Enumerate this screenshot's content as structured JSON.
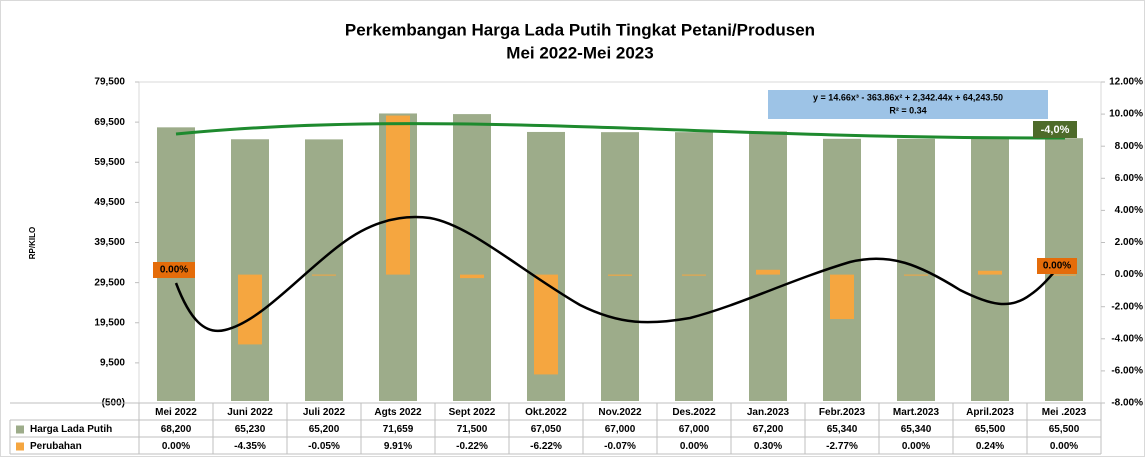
{
  "chart_data": {
    "type": "bar",
    "title": "Perkembangan Harga  Lada Putih  Tingkat Petani/Produsen",
    "subtitle": "Mei 2022-Mei 2023",
    "y_label": "RP/KILO",
    "categories": [
      "Mei 2022",
      "Juni 2022",
      "Juli 2022",
      "Agts 2022",
      "Sept 2022",
      "Okt.2022",
      "Nov.2022",
      "Des.2022",
      "Jan.2023",
      "Febr.2023",
      "Mart.2023",
      "April.2023",
      "Mei .2023"
    ],
    "series": [
      {
        "name": "Harga Lada Putih",
        "color": "#9dac8a",
        "values": [
          68200,
          65230,
          65200,
          71659,
          71500,
          67050,
          67000,
          67000,
          67200,
          65340,
          65340,
          65500,
          65500
        ],
        "value_labels": [
          "68,200",
          "65,230",
          "65,200",
          "71,659",
          "71,500",
          "67,050",
          "67,000",
          "67,000",
          "67,200",
          "65,340",
          "65,340",
          "65,500",
          "65,500"
        ]
      },
      {
        "name": "Perubahan",
        "color": "#f5a640",
        "axis": "y2",
        "values": [
          0,
          -4.35,
          -0.05,
          9.91,
          -0.22,
          -6.22,
          -0.07,
          0,
          0.3,
          -2.77,
          0,
          0.24,
          0
        ],
        "value_labels": [
          "0.00%",
          "-4.35%",
          "-0.05%",
          "9.91%",
          "-0.22%",
          "-6.22%",
          "-0.07%",
          "0.00%",
          "0.30%",
          "-2.77%",
          "0.00%",
          "0.24%",
          "0.00%"
        ]
      }
    ],
    "ylim": [
      -500,
      79500
    ],
    "yticks": [
      {
        "value": -500,
        "label": "(500)"
      },
      {
        "value": 9500,
        "label": "9,500"
      },
      {
        "value": 19500,
        "label": "19,500"
      },
      {
        "value": 29500,
        "label": "29,500"
      },
      {
        "value": 39500,
        "label": "39,500"
      },
      {
        "value": 49500,
        "label": "49,500"
      },
      {
        "value": 59500,
        "label": "59,500"
      },
      {
        "value": 69500,
        "label": "69,500"
      },
      {
        "value": 79500,
        "label": "79,500"
      }
    ],
    "y2lim": [
      -8,
      12
    ],
    "y2ticks": [
      {
        "value": -8,
        "label": "-8.00%"
      },
      {
        "value": -6,
        "label": "-6.00%"
      },
      {
        "value": -4,
        "label": "-4.00%"
      },
      {
        "value": -2,
        "label": "-2.00%"
      },
      {
        "value": 0,
        "label": "0.00%"
      },
      {
        "value": 2,
        "label": "2.00%"
      },
      {
        "value": 4,
        "label": "4.00%"
      },
      {
        "value": 6,
        "label": "6.00%"
      },
      {
        "value": 8,
        "label": "8.00%"
      },
      {
        "value": 10,
        "label": "10.00%"
      },
      {
        "value": 12,
        "label": "12.00%"
      }
    ],
    "trend_equation": "y = 14.66x³ - 363.86x² + 2,342.44x + 64,243.50",
    "trend_r2": "R² = 0.34",
    "annotation": "-4,0%"
  }
}
